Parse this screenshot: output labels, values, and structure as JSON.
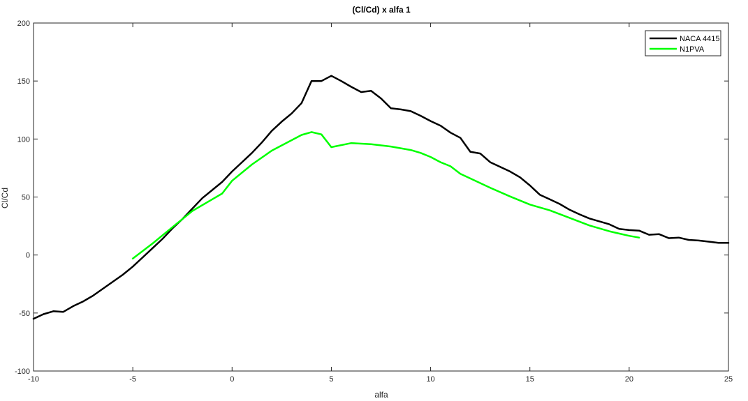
{
  "chart_data": {
    "type": "line",
    "title": "(Cl/Cd) x alfa 1",
    "xlabel": "alfa",
    "ylabel": "Cl/Cd",
    "xlim": [
      -10,
      25
    ],
    "ylim": [
      -100,
      200
    ],
    "xticks": [
      -10,
      -5,
      0,
      5,
      10,
      15,
      20,
      25
    ],
    "yticks": [
      -100,
      -50,
      0,
      50,
      100,
      150,
      200
    ],
    "grid": false,
    "legend_position": "top-right",
    "series": [
      {
        "name": "NACA 4415",
        "color": "#000000",
        "points": [
          [
            -10,
            -55
          ],
          [
            -9.5,
            -51
          ],
          [
            -9,
            -48.5
          ],
          [
            -8.5,
            -49
          ],
          [
            -8,
            -44
          ],
          [
            -7.5,
            -40
          ],
          [
            -7,
            -35
          ],
          [
            -6.5,
            -29
          ],
          [
            -6,
            -23
          ],
          [
            -5.5,
            -17
          ],
          [
            -5,
            -10
          ],
          [
            -4.5,
            -2
          ],
          [
            -4,
            6
          ],
          [
            -3.5,
            14
          ],
          [
            -3,
            23
          ],
          [
            -2.5,
            31
          ],
          [
            -2,
            40
          ],
          [
            -1.5,
            49
          ],
          [
            -1,
            56
          ],
          [
            -0.5,
            63
          ],
          [
            0,
            72
          ],
          [
            0.5,
            80
          ],
          [
            1,
            88
          ],
          [
            1.5,
            97
          ],
          [
            2,
            107
          ],
          [
            2.5,
            115
          ],
          [
            3,
            122
          ],
          [
            3.5,
            131
          ],
          [
            4,
            150
          ],
          [
            4.5,
            150
          ],
          [
            5,
            154.5
          ],
          [
            5.5,
            150
          ],
          [
            6,
            145
          ],
          [
            6.5,
            140.5
          ],
          [
            7,
            141.5
          ],
          [
            7.5,
            135
          ],
          [
            8,
            126.5
          ],
          [
            8.5,
            125.5
          ],
          [
            9,
            124
          ],
          [
            9.5,
            120
          ],
          [
            10,
            115.5
          ],
          [
            10.5,
            111.5
          ],
          [
            11,
            105.5
          ],
          [
            11.5,
            101
          ],
          [
            12,
            89
          ],
          [
            12.5,
            87.5
          ],
          [
            13,
            80
          ],
          [
            13.5,
            76
          ],
          [
            14,
            72
          ],
          [
            14.5,
            67
          ],
          [
            15,
            60
          ],
          [
            15.5,
            52
          ],
          [
            16,
            48
          ],
          [
            16.5,
            44
          ],
          [
            17,
            39
          ],
          [
            17.5,
            35
          ],
          [
            18,
            31.5
          ],
          [
            18.5,
            29
          ],
          [
            19,
            26.5
          ],
          [
            19.5,
            22.5
          ],
          [
            20,
            21.5
          ],
          [
            20.5,
            21
          ],
          [
            21,
            17.5
          ],
          [
            21.5,
            18
          ],
          [
            22,
            14.5
          ],
          [
            22.5,
            15
          ],
          [
            23,
            13
          ],
          [
            23.5,
            12.5
          ],
          [
            24,
            11.5
          ],
          [
            24.5,
            10.5
          ],
          [
            25,
            10.5
          ]
        ]
      },
      {
        "name": "N1PVA",
        "color": "#00ff00",
        "points": [
          [
            -5,
            -3
          ],
          [
            -4,
            10
          ],
          [
            -3,
            24
          ],
          [
            -2,
            38
          ],
          [
            -1,
            48
          ],
          [
            -0.5,
            53
          ],
          [
            0,
            64
          ],
          [
            1,
            78
          ],
          [
            2,
            90
          ],
          [
            3,
            99
          ],
          [
            3.5,
            103.5
          ],
          [
            4,
            106
          ],
          [
            4.5,
            104
          ],
          [
            5,
            93
          ],
          [
            6,
            96.5
          ],
          [
            7,
            95.5
          ],
          [
            8,
            93.5
          ],
          [
            9,
            90.5
          ],
          [
            9.5,
            88
          ],
          [
            10,
            84.5
          ],
          [
            10.5,
            80
          ],
          [
            11,
            76.5
          ],
          [
            11.5,
            70
          ],
          [
            12,
            66
          ],
          [
            13,
            58
          ],
          [
            14,
            50.5
          ],
          [
            15,
            43.5
          ],
          [
            16,
            38.5
          ],
          [
            17,
            32
          ],
          [
            18,
            25.5
          ],
          [
            19,
            20.5
          ],
          [
            20,
            16.5
          ],
          [
            20.5,
            15
          ]
        ]
      }
    ]
  }
}
